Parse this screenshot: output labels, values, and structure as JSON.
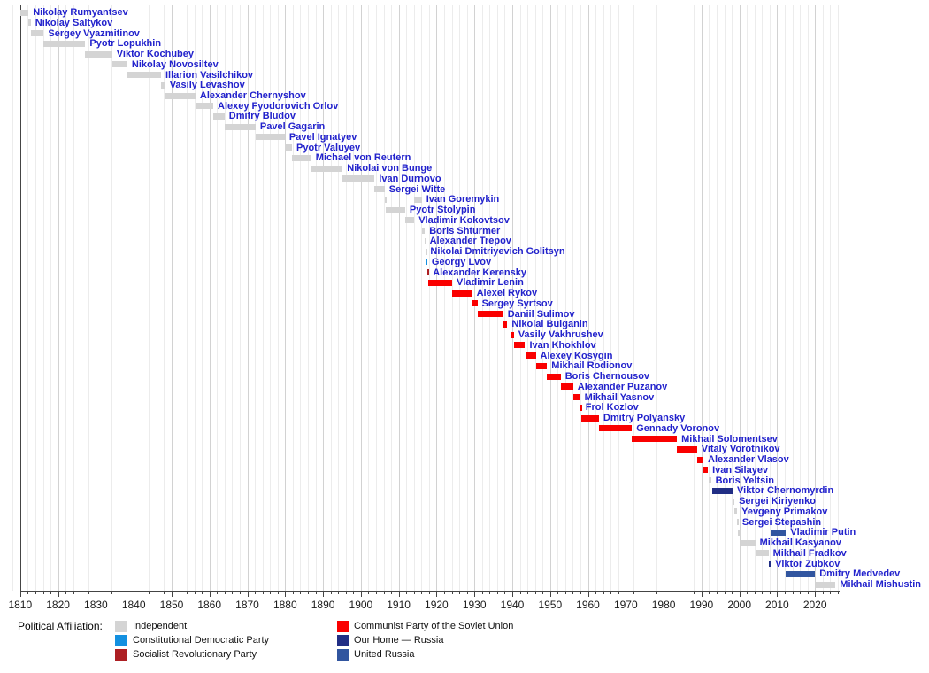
{
  "chart_data": {
    "type": "bar",
    "subtype": "timeline-gantt",
    "x_axis": {
      "start": 1807,
      "end": 2026.5,
      "minor_tick_interval": 2,
      "major_tick_interval": 10,
      "tick_labels": [
        1810,
        1820,
        1830,
        1840,
        1850,
        1860,
        1870,
        1880,
        1890,
        1900,
        1910,
        1920,
        1930,
        1940,
        1950,
        1960,
        1970,
        1980,
        1990,
        2000,
        2010,
        2020
      ]
    },
    "parties": {
      "independent": {
        "label": "Independent",
        "color": "#d4d4d4"
      },
      "constitutional_democratic": {
        "label": "Constitutional Democratic Party",
        "color": "#1390e0"
      },
      "socialist_revolutionary": {
        "label": "Socialist Revolutionary Party",
        "color": "#ad1f23"
      },
      "communist": {
        "label": "Communist Party of the Soviet Union",
        "color": "#fa0000"
      },
      "our_home_russia": {
        "label": "Our Home — Russia",
        "color": "#212e85"
      },
      "united_russia": {
        "label": "United Russia",
        "color": "#31559f"
      }
    },
    "legend": {
      "title": "Political Affiliation:",
      "columns": [
        [
          "independent",
          "constitutional_democratic",
          "socialist_revolutionary"
        ],
        [
          "communist",
          "our_home_russia",
          "united_russia"
        ]
      ]
    },
    "people": [
      {
        "name": "Nikolay Rumyantsev",
        "party": "independent",
        "terms": [
          [
            1810.0,
            1812.2
          ]
        ]
      },
      {
        "name": "Nikolay Saltykov",
        "party": "independent",
        "terms": [
          [
            1812.2,
            1812.8
          ]
        ]
      },
      {
        "name": "Sergey Vyazmitinov",
        "party": "independent",
        "terms": [
          [
            1812.8,
            1816.2
          ]
        ]
      },
      {
        "name": "Pyotr Lopukhin",
        "party": "independent",
        "terms": [
          [
            1816.2,
            1827.2
          ]
        ]
      },
      {
        "name": "Viktor Kochubey",
        "party": "independent",
        "terms": [
          [
            1827.2,
            1834.3
          ]
        ]
      },
      {
        "name": "Nikolay Novosiltev",
        "party": "independent",
        "terms": [
          [
            1834.3,
            1838.3
          ]
        ]
      },
      {
        "name": "Illarion Vasilchikov",
        "party": "independent",
        "terms": [
          [
            1838.3,
            1847.2
          ]
        ]
      },
      {
        "name": "Vasily Levashov",
        "party": "independent",
        "terms": [
          [
            1847.2,
            1848.3
          ]
        ]
      },
      {
        "name": "Alexander Chernyshov",
        "party": "independent",
        "terms": [
          [
            1848.3,
            1856.3
          ]
        ]
      },
      {
        "name": "Alexey Fyodorovich Orlov",
        "party": "independent",
        "terms": [
          [
            1856.3,
            1861.0
          ]
        ]
      },
      {
        "name": "Dmitry Bludov",
        "party": "independent",
        "terms": [
          [
            1861.0,
            1864.0
          ]
        ]
      },
      {
        "name": "Pavel Gagarin",
        "party": "independent",
        "terms": [
          [
            1864.0,
            1872.2
          ]
        ]
      },
      {
        "name": "Pavel Ignatyev",
        "party": "independent",
        "terms": [
          [
            1872.2,
            1879.9
          ]
        ]
      },
      {
        "name": "Pyotr Valuyev",
        "party": "independent",
        "terms": [
          [
            1879.9,
            1881.8
          ]
        ]
      },
      {
        "name": "Michael von Reutern",
        "party": "independent",
        "terms": [
          [
            1881.8,
            1886.9
          ]
        ]
      },
      {
        "name": "Nikolai von Bunge",
        "party": "independent",
        "terms": [
          [
            1887.0,
            1895.2
          ]
        ]
      },
      {
        "name": "Ivan Durnovo",
        "party": "independent",
        "terms": [
          [
            1895.2,
            1903.6
          ]
        ]
      },
      {
        "name": "Sergei Witte",
        "party": "independent",
        "terms": [
          [
            1903.6,
            1906.3
          ]
        ]
      },
      {
        "name": "Ivan Goremykin",
        "party": "independent",
        "terms": [
          [
            1906.3,
            1906.6
          ],
          [
            1914.1,
            1916.1
          ]
        ]
      },
      {
        "name": "Pyotr Stolypin",
        "party": "independent",
        "terms": [
          [
            1906.6,
            1911.7
          ]
        ]
      },
      {
        "name": "Vladimir Kokovtsov",
        "party": "independent",
        "terms": [
          [
            1911.7,
            1914.1
          ]
        ]
      },
      {
        "name": "Boris Shturmer",
        "party": "independent",
        "terms": [
          [
            1916.1,
            1916.9
          ]
        ]
      },
      {
        "name": "Alexander Trepov",
        "party": "independent",
        "terms": [
          [
            1916.9,
            1917.0
          ]
        ]
      },
      {
        "name": "Nikolai Dmitriyevich Golitsyn",
        "party": "independent",
        "terms": [
          [
            1917.0,
            1917.2
          ]
        ]
      },
      {
        "name": "Georgy Lvov",
        "party": "constitutional_democratic",
        "terms": [
          [
            1917.2,
            1917.55
          ]
        ]
      },
      {
        "name": "Alexander Kerensky",
        "party": "socialist_revolutionary",
        "terms": [
          [
            1917.55,
            1917.85
          ]
        ]
      },
      {
        "name": "Vladimir Lenin",
        "party": "communist",
        "terms": [
          [
            1917.9,
            1924.1
          ]
        ]
      },
      {
        "name": "Alexei Rykov",
        "party": "communist",
        "terms": [
          [
            1924.1,
            1929.4
          ]
        ]
      },
      {
        "name": "Sergey Syrtsov",
        "party": "communist",
        "terms": [
          [
            1929.4,
            1930.8
          ]
        ]
      },
      {
        "name": "Daniil Sulimov",
        "party": "communist",
        "terms": [
          [
            1930.8,
            1937.6
          ]
        ]
      },
      {
        "name": "Nikolai Bulganin",
        "party": "communist",
        "terms": [
          [
            1937.6,
            1938.7
          ]
        ]
      },
      {
        "name": "Vasily Vakhrushev",
        "party": "communist",
        "terms": [
          [
            1939.5,
            1940.4
          ]
        ]
      },
      {
        "name": "Ivan Khokhlov",
        "party": "communist",
        "terms": [
          [
            1940.4,
            1943.4
          ]
        ]
      },
      {
        "name": "Alexey Kosygin",
        "party": "communist",
        "terms": [
          [
            1943.4,
            1946.2
          ]
        ]
      },
      {
        "name": "Mikhail Rodionov",
        "party": "communist",
        "terms": [
          [
            1946.2,
            1949.2
          ]
        ]
      },
      {
        "name": "Boris Chernousov",
        "party": "communist",
        "terms": [
          [
            1949.2,
            1952.8
          ]
        ]
      },
      {
        "name": "Alexander Puzanov",
        "party": "communist",
        "terms": [
          [
            1952.8,
            1956.1
          ]
        ]
      },
      {
        "name": "Mikhail Yasnov",
        "party": "communist",
        "terms": [
          [
            1956.1,
            1957.9
          ]
        ]
      },
      {
        "name": "Frol Kozlov",
        "party": "communist",
        "terms": [
          [
            1957.9,
            1958.2
          ]
        ]
      },
      {
        "name": "Dmitry Polyansky",
        "party": "communist",
        "terms": [
          [
            1958.2,
            1962.9
          ]
        ]
      },
      {
        "name": "Gennady Voronov",
        "party": "communist",
        "terms": [
          [
            1962.9,
            1971.6
          ]
        ]
      },
      {
        "name": "Mikhail Solomentsev",
        "party": "communist",
        "terms": [
          [
            1971.6,
            1983.5
          ]
        ]
      },
      {
        "name": "Vitaly Vorotnikov",
        "party": "communist",
        "terms": [
          [
            1983.5,
            1988.8
          ]
        ]
      },
      {
        "name": "Alexander Vlasov",
        "party": "communist",
        "terms": [
          [
            1988.8,
            1990.5
          ]
        ]
      },
      {
        "name": "Ivan Silayev",
        "party": "communist",
        "terms": [
          [
            1990.5,
            1991.7
          ]
        ]
      },
      {
        "name": "Boris Yeltsin",
        "party": "independent",
        "terms": [
          [
            1991.8,
            1992.5
          ]
        ]
      },
      {
        "name": "Viktor Chernomyrdin",
        "party": "our_home_russia",
        "terms": [
          [
            1992.9,
            1998.2
          ]
        ]
      },
      {
        "name": "Sergei Kiriyenko",
        "party": "independent",
        "terms": [
          [
            1998.3,
            1998.7
          ]
        ]
      },
      {
        "name": "Yevgeny Primakov",
        "party": "independent",
        "terms": [
          [
            1998.7,
            1999.4
          ]
        ]
      },
      {
        "name": "Sergei Stepashin",
        "party": "independent",
        "terms": [
          [
            1999.35,
            1999.6
          ]
        ]
      },
      {
        "name": "Vladimir Putin",
        "party": "united_russia",
        "terms": [
          [
            1999.6,
            2000.4,
            "independent"
          ],
          [
            2008.3,
            2012.3,
            "united_russia"
          ]
        ]
      },
      {
        "name": "Mikhail Kasyanov",
        "party": "independent",
        "terms": [
          [
            2000.4,
            2004.2
          ]
        ]
      },
      {
        "name": "Mikhail Fradkov",
        "party": "independent",
        "terms": [
          [
            2004.2,
            2007.7
          ]
        ]
      },
      {
        "name": "Viktor Zubkov",
        "party": "our_home_russia",
        "terms": [
          [
            2007.7,
            2008.3
          ]
        ]
      },
      {
        "name": "Dmitry Medvedev",
        "party": "united_russia",
        "terms": [
          [
            2012.3,
            2020.0
          ]
        ]
      },
      {
        "name": "Mikhail Mishustin",
        "party": "independent",
        "terms": [
          [
            2020.1,
            2025.4
          ]
        ]
      }
    ]
  }
}
